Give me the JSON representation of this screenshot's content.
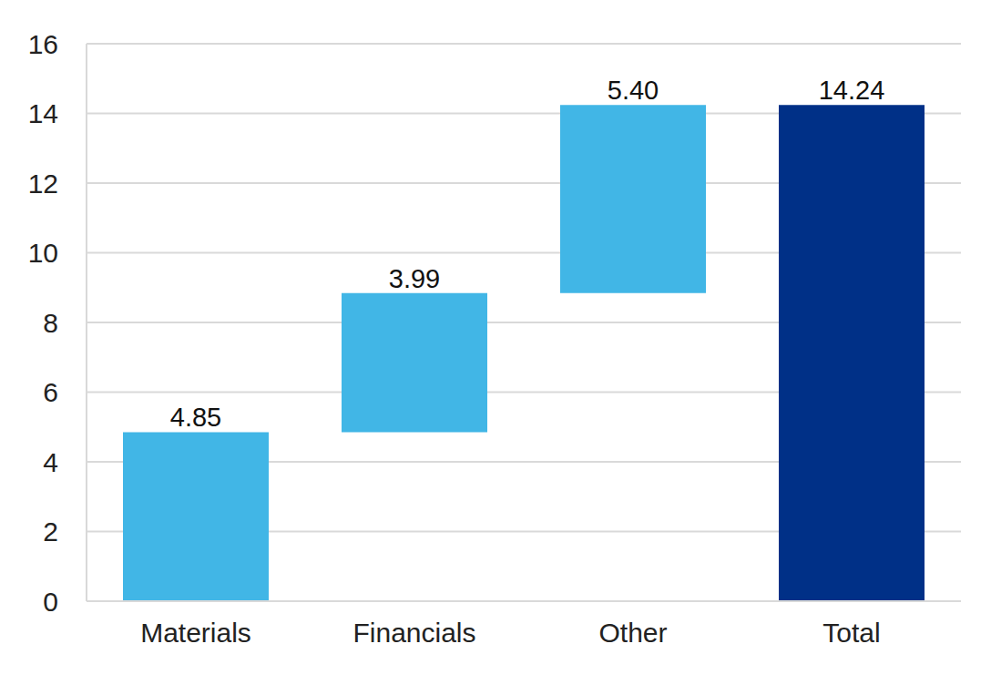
{
  "chart_data": {
    "type": "waterfall",
    "categories": [
      "Materials",
      "Financials",
      "Other",
      "Total"
    ],
    "values": [
      4.85,
      3.99,
      5.4,
      14.24
    ],
    "value_labels": [
      "4.85",
      "3.99",
      "5.40",
      "14.24"
    ],
    "colors": [
      "#41b6e6",
      "#41b6e6",
      "#41b6e6",
      "#003087"
    ],
    "ylim": [
      0,
      16
    ],
    "yticks": [
      0,
      2,
      4,
      6,
      8,
      10,
      12,
      14,
      16
    ],
    "grid": true,
    "data_labels": true
  }
}
